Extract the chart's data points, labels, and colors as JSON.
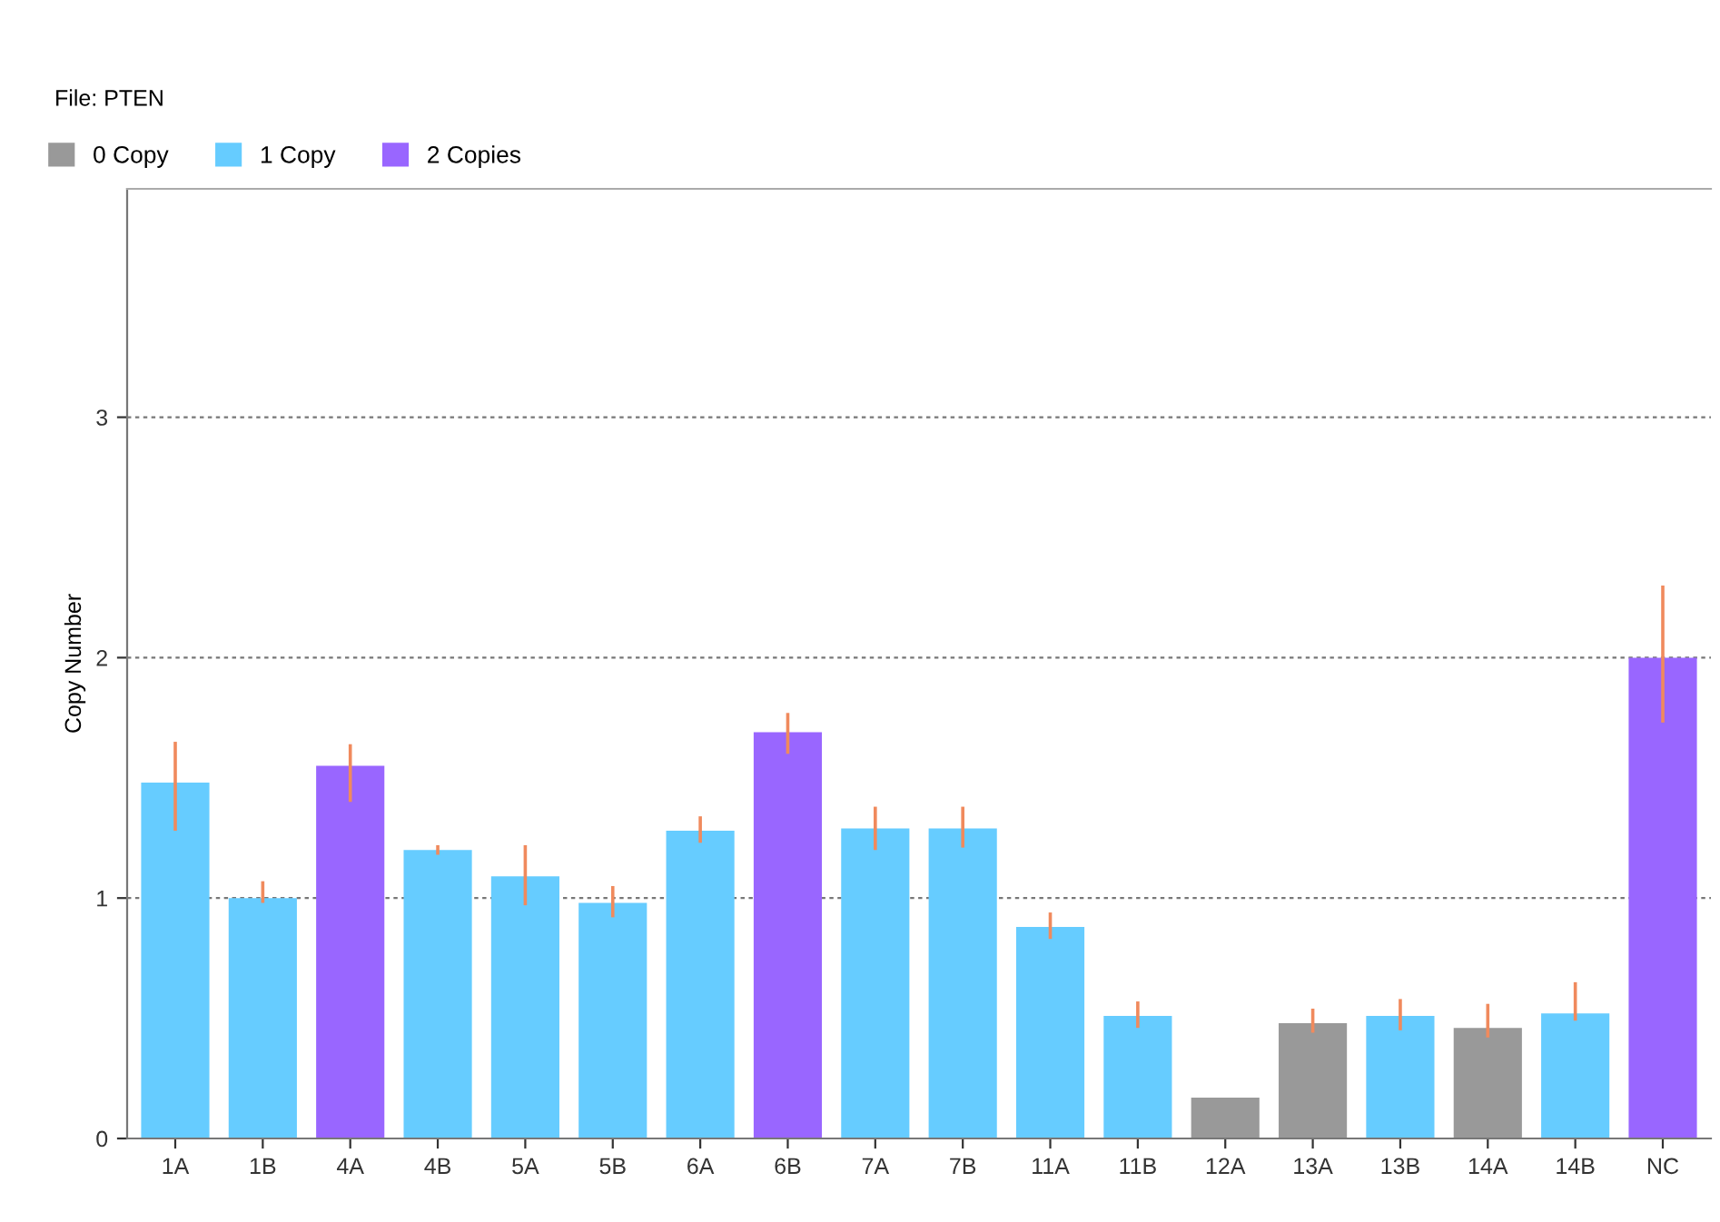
{
  "chart_data": {
    "type": "bar",
    "title": "File: PTEN",
    "ylabel": "Copy Number",
    "categories": [
      "1A",
      "1B",
      "4A",
      "4B",
      "5A",
      "5B",
      "6A",
      "6B",
      "7A",
      "7B",
      "11A",
      "11B",
      "12A",
      "13A",
      "13B",
      "14A",
      "14B",
      "NC"
    ],
    "series": [
      {
        "name": "0 Copy",
        "color": "#999999",
        "values": [
          null,
          null,
          null,
          null,
          null,
          null,
          null,
          null,
          null,
          null,
          null,
          null,
          0.17,
          0.48,
          null,
          0.46,
          null,
          null
        ],
        "errors": [
          null,
          null,
          null,
          null,
          null,
          null,
          null,
          null,
          null,
          null,
          null,
          null,
          null,
          [
            0.44,
            0.54
          ],
          null,
          [
            0.42,
            0.56
          ],
          null,
          null
        ]
      },
      {
        "name": "1 Copy",
        "color": "#66ccff",
        "values": [
          1.48,
          1.0,
          null,
          1.2,
          1.09,
          0.98,
          1.28,
          null,
          1.29,
          1.29,
          0.88,
          0.51,
          null,
          null,
          0.51,
          null,
          0.52,
          null
        ],
        "errors": [
          [
            1.28,
            1.65
          ],
          [
            0.98,
            1.07
          ],
          null,
          [
            1.18,
            1.22
          ],
          [
            0.97,
            1.22
          ],
          [
            0.92,
            1.05
          ],
          [
            1.23,
            1.34
          ],
          null,
          [
            1.2,
            1.38
          ],
          [
            1.21,
            1.38
          ],
          [
            0.83,
            0.94
          ],
          [
            0.46,
            0.57
          ],
          null,
          null,
          [
            0.45,
            0.58
          ],
          null,
          [
            0.49,
            0.65
          ],
          null
        ]
      },
      {
        "name": "2 Copies",
        "color": "#9966ff",
        "values": [
          null,
          null,
          1.55,
          null,
          null,
          null,
          null,
          1.69,
          null,
          null,
          null,
          null,
          null,
          null,
          null,
          null,
          null,
          2.0
        ],
        "errors": [
          null,
          null,
          [
            1.4,
            1.64
          ],
          null,
          null,
          null,
          null,
          [
            1.6,
            1.77
          ],
          null,
          null,
          null,
          null,
          null,
          null,
          null,
          null,
          null,
          [
            1.73,
            2.3
          ]
        ]
      }
    ],
    "ylim": [
      0,
      3.95
    ],
    "yticks": [
      0,
      1,
      2,
      3
    ],
    "grid": "y",
    "legend": "top left"
  }
}
